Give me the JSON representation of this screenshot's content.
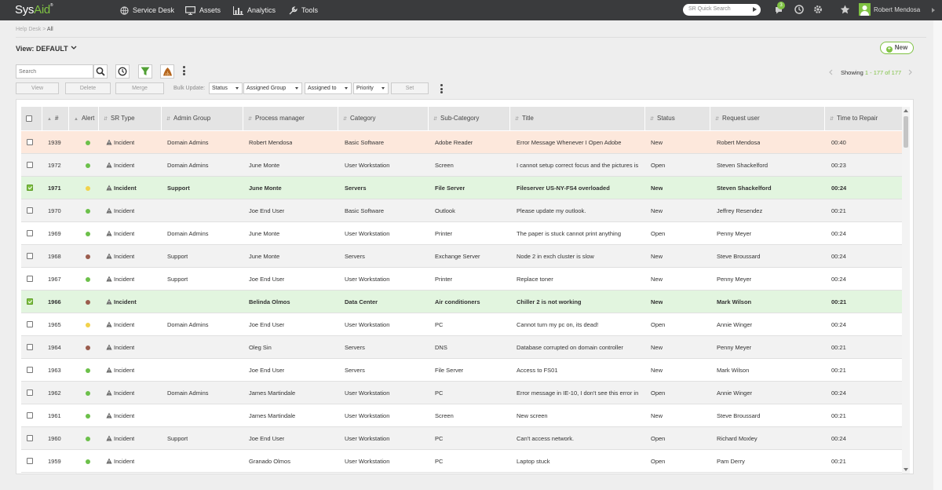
{
  "app": {
    "logo_sys": "Sys",
    "logo_aid": "Aid"
  },
  "nav": [
    {
      "label": "Service Desk",
      "icon": "globe-icon"
    },
    {
      "label": "Assets",
      "icon": "monitor-icon"
    },
    {
      "label": "Analytics",
      "icon": "bar-chart-icon"
    },
    {
      "label": "Tools",
      "icon": "wrench-icon"
    }
  ],
  "quick_search": {
    "placeholder": "SR Quick Search"
  },
  "notifications": {
    "count": "3"
  },
  "user": {
    "name": "Robert Mendosa"
  },
  "breadcrumb": {
    "root": "Help Desk",
    "sep": ">",
    "current": "All"
  },
  "view": {
    "title": "View: DEFAULT"
  },
  "new_button": {
    "label": "New"
  },
  "search": {
    "placeholder": "Search"
  },
  "showing": {
    "prefix": "Showing",
    "range": "1 - 177 of 177"
  },
  "actions": {
    "view": "View",
    "delete": "Delete",
    "merge": "Merge",
    "bulk_label": "Bulk Update:",
    "set": "Set"
  },
  "bulk_dropdowns": [
    "Status",
    "Assigned Group",
    "Assigned to",
    "Priority"
  ],
  "columns": [
    "#",
    "Alert",
    "SR Type",
    "Admin Group",
    "Process manager",
    "Category",
    "Sub-Category",
    "Title",
    "Status",
    "Request user",
    "Time to Repair"
  ],
  "colors": {
    "accent": "#7fc243",
    "alert_green": "#6cc04a",
    "alert_yellow": "#f2d24b",
    "alert_brown": "#9b5d4e",
    "highlight_row": "#fde8dc",
    "selected_row": "#e2f5df"
  },
  "rows": [
    {
      "id": "1939",
      "alert": "green",
      "type": "Incident",
      "group": "Domain Admins",
      "pm": "Robert Mendosa",
      "cat": "Basic Software",
      "sub": "Adobe Reader",
      "title": "Error Message Whenever I Open Adobe",
      "status": "New",
      "user": "Robert Mendosa",
      "ttr": "00:40",
      "checked": false,
      "style": "hl"
    },
    {
      "id": "1972",
      "alert": "green",
      "type": "Incident",
      "group": "Domain Admins",
      "pm": "June Monte",
      "cat": "User Workstation",
      "sub": "Screen",
      "title": "I cannot setup correct focus and the pictures is",
      "status": "Open",
      "user": "Steven Shackelford",
      "ttr": "00:23",
      "checked": false,
      "style": "even"
    },
    {
      "id": "1971",
      "alert": "yellow",
      "type": "Incident",
      "group": "Support",
      "pm": "June Monte",
      "cat": "Servers",
      "sub": "File Server",
      "title": "Fileserver US-NY-FS4 overloaded",
      "status": "New",
      "user": "Steven Shackelford",
      "ttr": "00:24",
      "checked": true,
      "style": "sel"
    },
    {
      "id": "1970",
      "alert": "green",
      "type": "Incident",
      "group": "",
      "pm": "Joe End User",
      "cat": "Basic Software",
      "sub": "Outlook",
      "title": "Please update my outlook.",
      "status": "New",
      "user": "Jeffrey Resendez",
      "ttr": "00:21",
      "checked": false,
      "style": "even"
    },
    {
      "id": "1969",
      "alert": "green",
      "type": "Incident",
      "group": "Domain Admins",
      "pm": "June Monte",
      "cat": "User Workstation",
      "sub": "Printer",
      "title": "The paper is stuck cannot print anything",
      "status": "Open",
      "user": "Penny Meyer",
      "ttr": "00:24",
      "checked": false,
      "style": "odd"
    },
    {
      "id": "1968",
      "alert": "brown",
      "type": "Incident",
      "group": "Support",
      "pm": "June Monte",
      "cat": "Servers",
      "sub": "Exchange Server",
      "title": "Node 2 in exch cluster is slow",
      "status": "New",
      "user": "Steve Broussard",
      "ttr": "00:24",
      "checked": false,
      "style": "even"
    },
    {
      "id": "1967",
      "alert": "green",
      "type": "Incident",
      "group": "Support",
      "pm": "Joe End User",
      "cat": "User Workstation",
      "sub": "Printer",
      "title": "Replace toner",
      "status": "New",
      "user": "Penny Meyer",
      "ttr": "00:24",
      "checked": false,
      "style": "odd"
    },
    {
      "id": "1966",
      "alert": "brown",
      "type": "Incident",
      "group": "",
      "pm": "Belinda Olmos",
      "cat": "Data Center",
      "sub": "Air conditioners",
      "title": "Chiller 2 is not working",
      "status": "New",
      "user": "Mark Wilson",
      "ttr": "00:21",
      "checked": true,
      "style": "sel"
    },
    {
      "id": "1965",
      "alert": "yellow",
      "type": "Incident",
      "group": "Domain Admins",
      "pm": "Joe End User",
      "cat": "User Workstation",
      "sub": "PC",
      "title": "Cannot turn my pc on, its dead!",
      "status": "Open",
      "user": "Annie Winger",
      "ttr": "00:24",
      "checked": false,
      "style": "odd"
    },
    {
      "id": "1964",
      "alert": "brown",
      "type": "Incident",
      "group": "",
      "pm": "Oleg Sin",
      "cat": "Servers",
      "sub": "DNS",
      "title": "Database corrupted on domain controller",
      "status": "New",
      "user": "Penny Meyer",
      "ttr": "00:21",
      "checked": false,
      "style": "even"
    },
    {
      "id": "1963",
      "alert": "green",
      "type": "Incident",
      "group": "",
      "pm": "Joe End User",
      "cat": "Servers",
      "sub": "File Server",
      "title": "Access to FS01",
      "status": "New",
      "user": "Mark Wilson",
      "ttr": "00:21",
      "checked": false,
      "style": "odd"
    },
    {
      "id": "1962",
      "alert": "green",
      "type": "Incident",
      "group": "Domain Admins",
      "pm": "James Martindale",
      "cat": "User Workstation",
      "sub": "PC",
      "title": "Error message in IE-10, I don't see this error in",
      "status": "Open",
      "user": "Annie Winger",
      "ttr": "00:24",
      "checked": false,
      "style": "even"
    },
    {
      "id": "1961",
      "alert": "green",
      "type": "Incident",
      "group": "",
      "pm": "James Martindale",
      "cat": "User Workstation",
      "sub": "Screen",
      "title": "New screen",
      "status": "New",
      "user": "Steve Broussard",
      "ttr": "00:21",
      "checked": false,
      "style": "odd"
    },
    {
      "id": "1960",
      "alert": "green",
      "type": "Incident",
      "group": "Support",
      "pm": "Joe End User",
      "cat": "User Workstation",
      "sub": "PC",
      "title": "Can't access network.",
      "status": "Open",
      "user": "Richard Moxley",
      "ttr": "00:24",
      "checked": false,
      "style": "even"
    },
    {
      "id": "1959",
      "alert": "green",
      "type": "Incident",
      "group": "",
      "pm": "Granado Olmos",
      "cat": "User Workstation",
      "sub": "PC",
      "title": "Laptop stuck",
      "status": "Open",
      "user": "Pam Derry",
      "ttr": "00:21",
      "checked": false,
      "style": "odd"
    }
  ]
}
